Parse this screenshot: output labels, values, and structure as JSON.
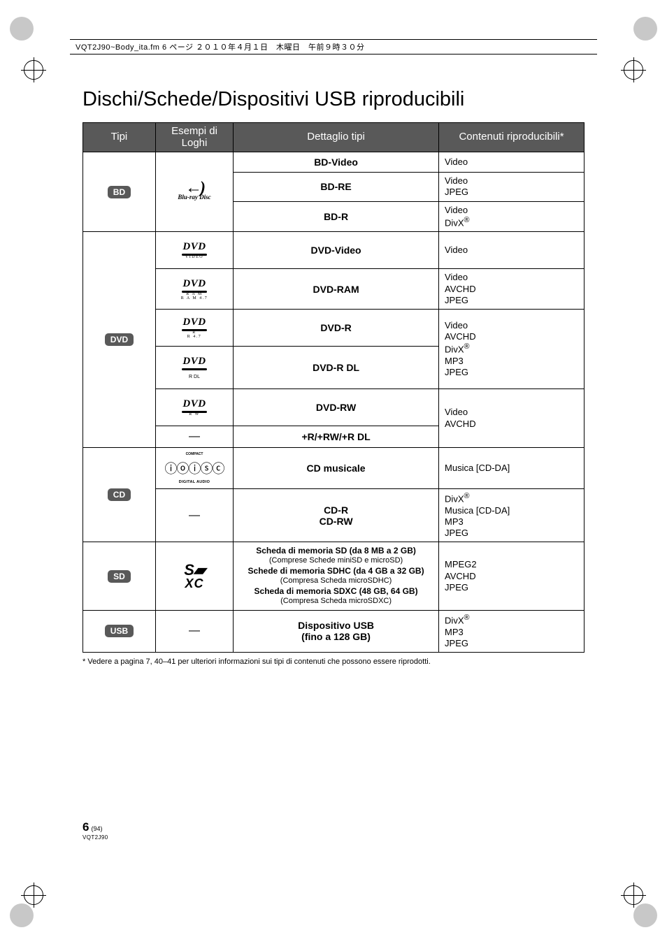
{
  "header_stamp": "VQT2J90~Body_ita.fm  6 ページ  ２０１０年４月１日　木曜日　午前９時３０分",
  "title": "Dischi/Schede/Dispositivi USB riproducibili",
  "columns": {
    "tipi": "Tipi",
    "loghi": "Esempi di Loghi",
    "dettaglio": "Dettaglio tipi",
    "contenuti": "Contenuti riproducibili*"
  },
  "badges": {
    "bd": "BD",
    "dvd": "DVD",
    "cd": "CD",
    "sd": "SD",
    "usb": "USB"
  },
  "bd": {
    "video_d": "BD-Video",
    "video_c": "Video",
    "re_d": "BD-RE",
    "re_c": "Video\nJPEG",
    "r_d": "BD-R",
    "r_c": "Video\nDivX®"
  },
  "dvdlogo": {
    "video": "VIDEO",
    "ram": "R A M\nR A M 4.7",
    "r": "R\nR 4.7",
    "rdl": "R DL",
    "rw": "R W"
  },
  "dvd": {
    "video_d": "DVD-Video",
    "video_c": "Video",
    "ram_d": "DVD-RAM",
    "ram_c": "Video\nAVCHD\nJPEG",
    "r_d": "DVD-R",
    "rdl_d": "DVD-R DL",
    "r_rdl_c": "Video\nAVCHD\nDivX®\nMP3\nJPEG",
    "rw_d": "DVD-RW",
    "plus_d": "+R/+RW/+R DL",
    "rw_plus_c": "Video\nAVCHD"
  },
  "cd": {
    "mus_d": "CD musicale",
    "mus_c": "Musica [CD-DA]",
    "r_d": "CD-R",
    "rw_d": "CD-RW",
    "r_rw_c": "DivX®\nMusica [CD-DA]\nMP3\nJPEG"
  },
  "sd": {
    "l1": "Scheda di memoria SD (da 8 MB a 2 GB)",
    "l2": "(Comprese Schede miniSD e microSD)",
    "l3": "Schede di memoria SDHC (da 4 GB a 32 GB)",
    "l4": "(Compresa Scheda microSDHC)",
    "l5": "Scheda di memoria SDXC (48 GB, 64 GB)",
    "l6": "(Compresa Scheda microSDXC)",
    "c": "MPEG2\nAVCHD\nJPEG"
  },
  "usb": {
    "d1": "Dispositivo USB",
    "d2": "(fino a 128 GB)",
    "c": "DivX®\nMP3\nJPEG"
  },
  "footnote": "*  Vedere a pagina 7, 40–41 per ulteriori informazioni sui tipi di contenuti che possono essere riprodotti.",
  "footer": {
    "page": "6",
    "paren": "(94)",
    "code": "VQT2J90"
  }
}
